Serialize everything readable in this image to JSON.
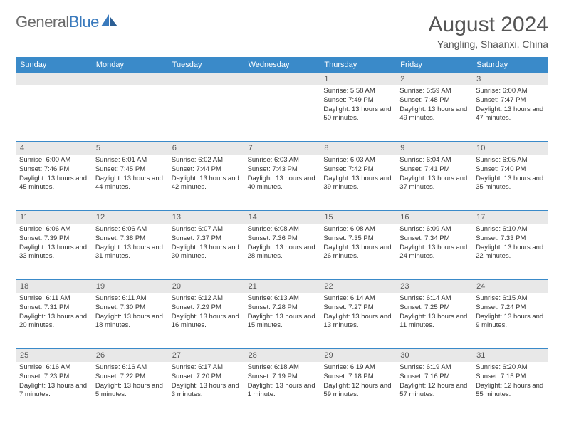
{
  "brand": {
    "part1": "General",
    "part2": "Blue"
  },
  "title": "August 2024",
  "location": "Yangling, Shaanxi, China",
  "colors": {
    "header_bg": "#3a8ac9",
    "daynum_bg": "#e8e8e8",
    "border": "#3a8ac9",
    "text": "#333333",
    "title_text": "#555555",
    "brand_gray": "#6b6b6b",
    "brand_blue": "#3a7abd",
    "page_bg": "#ffffff"
  },
  "weekdays": [
    "Sunday",
    "Monday",
    "Tuesday",
    "Wednesday",
    "Thursday",
    "Friday",
    "Saturday"
  ],
  "weeks": [
    [
      {
        "n": "",
        "sr": "",
        "ss": "",
        "dl": ""
      },
      {
        "n": "",
        "sr": "",
        "ss": "",
        "dl": ""
      },
      {
        "n": "",
        "sr": "",
        "ss": "",
        "dl": ""
      },
      {
        "n": "",
        "sr": "",
        "ss": "",
        "dl": ""
      },
      {
        "n": "1",
        "sr": "Sunrise: 5:58 AM",
        "ss": "Sunset: 7:49 PM",
        "dl": "Daylight: 13 hours and 50 minutes."
      },
      {
        "n": "2",
        "sr": "Sunrise: 5:59 AM",
        "ss": "Sunset: 7:48 PM",
        "dl": "Daylight: 13 hours and 49 minutes."
      },
      {
        "n": "3",
        "sr": "Sunrise: 6:00 AM",
        "ss": "Sunset: 7:47 PM",
        "dl": "Daylight: 13 hours and 47 minutes."
      }
    ],
    [
      {
        "n": "4",
        "sr": "Sunrise: 6:00 AM",
        "ss": "Sunset: 7:46 PM",
        "dl": "Daylight: 13 hours and 45 minutes."
      },
      {
        "n": "5",
        "sr": "Sunrise: 6:01 AM",
        "ss": "Sunset: 7:45 PM",
        "dl": "Daylight: 13 hours and 44 minutes."
      },
      {
        "n": "6",
        "sr": "Sunrise: 6:02 AM",
        "ss": "Sunset: 7:44 PM",
        "dl": "Daylight: 13 hours and 42 minutes."
      },
      {
        "n": "7",
        "sr": "Sunrise: 6:03 AM",
        "ss": "Sunset: 7:43 PM",
        "dl": "Daylight: 13 hours and 40 minutes."
      },
      {
        "n": "8",
        "sr": "Sunrise: 6:03 AM",
        "ss": "Sunset: 7:42 PM",
        "dl": "Daylight: 13 hours and 39 minutes."
      },
      {
        "n": "9",
        "sr": "Sunrise: 6:04 AM",
        "ss": "Sunset: 7:41 PM",
        "dl": "Daylight: 13 hours and 37 minutes."
      },
      {
        "n": "10",
        "sr": "Sunrise: 6:05 AM",
        "ss": "Sunset: 7:40 PM",
        "dl": "Daylight: 13 hours and 35 minutes."
      }
    ],
    [
      {
        "n": "11",
        "sr": "Sunrise: 6:06 AM",
        "ss": "Sunset: 7:39 PM",
        "dl": "Daylight: 13 hours and 33 minutes."
      },
      {
        "n": "12",
        "sr": "Sunrise: 6:06 AM",
        "ss": "Sunset: 7:38 PM",
        "dl": "Daylight: 13 hours and 31 minutes."
      },
      {
        "n": "13",
        "sr": "Sunrise: 6:07 AM",
        "ss": "Sunset: 7:37 PM",
        "dl": "Daylight: 13 hours and 30 minutes."
      },
      {
        "n": "14",
        "sr": "Sunrise: 6:08 AM",
        "ss": "Sunset: 7:36 PM",
        "dl": "Daylight: 13 hours and 28 minutes."
      },
      {
        "n": "15",
        "sr": "Sunrise: 6:08 AM",
        "ss": "Sunset: 7:35 PM",
        "dl": "Daylight: 13 hours and 26 minutes."
      },
      {
        "n": "16",
        "sr": "Sunrise: 6:09 AM",
        "ss": "Sunset: 7:34 PM",
        "dl": "Daylight: 13 hours and 24 minutes."
      },
      {
        "n": "17",
        "sr": "Sunrise: 6:10 AM",
        "ss": "Sunset: 7:33 PM",
        "dl": "Daylight: 13 hours and 22 minutes."
      }
    ],
    [
      {
        "n": "18",
        "sr": "Sunrise: 6:11 AM",
        "ss": "Sunset: 7:31 PM",
        "dl": "Daylight: 13 hours and 20 minutes."
      },
      {
        "n": "19",
        "sr": "Sunrise: 6:11 AM",
        "ss": "Sunset: 7:30 PM",
        "dl": "Daylight: 13 hours and 18 minutes."
      },
      {
        "n": "20",
        "sr": "Sunrise: 6:12 AM",
        "ss": "Sunset: 7:29 PM",
        "dl": "Daylight: 13 hours and 16 minutes."
      },
      {
        "n": "21",
        "sr": "Sunrise: 6:13 AM",
        "ss": "Sunset: 7:28 PM",
        "dl": "Daylight: 13 hours and 15 minutes."
      },
      {
        "n": "22",
        "sr": "Sunrise: 6:14 AM",
        "ss": "Sunset: 7:27 PM",
        "dl": "Daylight: 13 hours and 13 minutes."
      },
      {
        "n": "23",
        "sr": "Sunrise: 6:14 AM",
        "ss": "Sunset: 7:25 PM",
        "dl": "Daylight: 13 hours and 11 minutes."
      },
      {
        "n": "24",
        "sr": "Sunrise: 6:15 AM",
        "ss": "Sunset: 7:24 PM",
        "dl": "Daylight: 13 hours and 9 minutes."
      }
    ],
    [
      {
        "n": "25",
        "sr": "Sunrise: 6:16 AM",
        "ss": "Sunset: 7:23 PM",
        "dl": "Daylight: 13 hours and 7 minutes."
      },
      {
        "n": "26",
        "sr": "Sunrise: 6:16 AM",
        "ss": "Sunset: 7:22 PM",
        "dl": "Daylight: 13 hours and 5 minutes."
      },
      {
        "n": "27",
        "sr": "Sunrise: 6:17 AM",
        "ss": "Sunset: 7:20 PM",
        "dl": "Daylight: 13 hours and 3 minutes."
      },
      {
        "n": "28",
        "sr": "Sunrise: 6:18 AM",
        "ss": "Sunset: 7:19 PM",
        "dl": "Daylight: 13 hours and 1 minute."
      },
      {
        "n": "29",
        "sr": "Sunrise: 6:19 AM",
        "ss": "Sunset: 7:18 PM",
        "dl": "Daylight: 12 hours and 59 minutes."
      },
      {
        "n": "30",
        "sr": "Sunrise: 6:19 AM",
        "ss": "Sunset: 7:16 PM",
        "dl": "Daylight: 12 hours and 57 minutes."
      },
      {
        "n": "31",
        "sr": "Sunrise: 6:20 AM",
        "ss": "Sunset: 7:15 PM",
        "dl": "Daylight: 12 hours and 55 minutes."
      }
    ]
  ]
}
